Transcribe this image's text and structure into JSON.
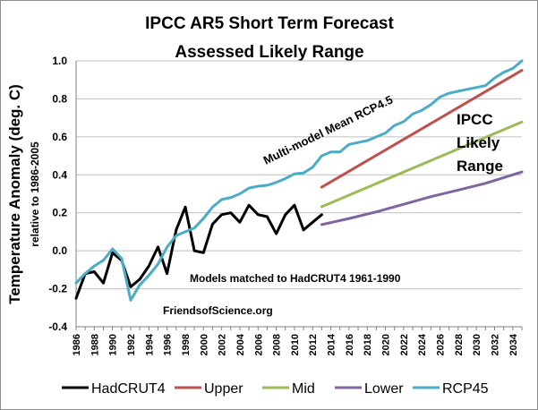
{
  "chart_data": {
    "type": "line",
    "title_line1": "IPCC AR5 Short Term Forecast",
    "title_line2": "Assessed Likely Range",
    "ylabel": "Temperature Anomaly (deg. C)",
    "ylabel_sub": "relative to 1986-2005",
    "ylim": [
      -0.4,
      1.0
    ],
    "y_ticks": [
      "-0.4",
      "-0.2",
      "0.0",
      "0.2",
      "0.4",
      "0.6",
      "0.8",
      "1.0"
    ],
    "x_start": 1986,
    "x_end": 2035,
    "x_tick_labels": [
      "1986",
      "1988",
      "1990",
      "1992",
      "1994",
      "1996",
      "1998",
      "2000",
      "2002",
      "2004",
      "2006",
      "2008",
      "2010",
      "2012",
      "2014",
      "2016",
      "2018",
      "2020",
      "2022",
      "2024",
      "2026",
      "2028",
      "2030",
      "2032",
      "2034"
    ],
    "series": [
      {
        "name": "HadCRUT4",
        "color": "#000000",
        "x": [
          1986,
          1987,
          1988,
          1989,
          1990,
          1991,
          1992,
          1993,
          1994,
          1995,
          1996,
          1997,
          1998,
          1999,
          2000,
          2001,
          2002,
          2003,
          2004,
          2005,
          2006,
          2007,
          2008,
          2009,
          2010,
          2011,
          2012,
          2013
        ],
        "values": [
          -0.25,
          -0.12,
          -0.11,
          -0.17,
          -0.01,
          -0.05,
          -0.19,
          -0.15,
          -0.08,
          0.02,
          -0.12,
          0.11,
          0.23,
          0.0,
          -0.01,
          0.14,
          0.19,
          0.2,
          0.15,
          0.24,
          0.19,
          0.18,
          0.09,
          0.19,
          0.24,
          0.11,
          0.15,
          0.19
        ]
      },
      {
        "name": "Upper",
        "color": "#c0504d",
        "x": [
          2013,
          2035
        ],
        "values": [
          0.335,
          0.95
        ]
      },
      {
        "name": "Mid",
        "color": "#9bbb59",
        "x": [
          2013,
          2035
        ],
        "values": [
          0.232,
          0.678
        ]
      },
      {
        "name": "Lower",
        "color": "#8064a2",
        "x": [
          2013,
          2016,
          2019,
          2022,
          2025,
          2028,
          2031,
          2035
        ],
        "values": [
          0.138,
          0.17,
          0.205,
          0.245,
          0.285,
          0.32,
          0.355,
          0.415
        ]
      },
      {
        "name": "RCP45",
        "color": "#4bacc6",
        "x": [
          1986,
          1987,
          1988,
          1989,
          1990,
          1991,
          1992,
          1993,
          1994,
          1995,
          1996,
          1997,
          1998,
          1999,
          2000,
          2001,
          2002,
          2003,
          2004,
          2005,
          2006,
          2007,
          2008,
          2009,
          2010,
          2011,
          2012,
          2013,
          2014,
          2015,
          2016,
          2017,
          2018,
          2019,
          2020,
          2021,
          2022,
          2023,
          2024,
          2025,
          2026,
          2027,
          2028,
          2029,
          2030,
          2031,
          2032,
          2033,
          2034,
          2035
        ],
        "values": [
          -0.17,
          -0.12,
          -0.08,
          -0.05,
          0.01,
          -0.04,
          -0.26,
          -0.18,
          -0.13,
          -0.07,
          0.02,
          0.08,
          0.1,
          0.12,
          0.17,
          0.23,
          0.27,
          0.28,
          0.3,
          0.33,
          0.34,
          0.345,
          0.36,
          0.38,
          0.405,
          0.41,
          0.44,
          0.5,
          0.52,
          0.52,
          0.56,
          0.57,
          0.58,
          0.6,
          0.62,
          0.66,
          0.68,
          0.72,
          0.74,
          0.77,
          0.81,
          0.83,
          0.84,
          0.85,
          0.86,
          0.87,
          0.91,
          0.94,
          0.96,
          1.0
        ]
      }
    ],
    "annotations": {
      "multi_model": "Multi-model Mean RCP4.5",
      "ipcc_line1": "IPCC",
      "ipcc_line2": "Likely",
      "ipcc_line3": "Range",
      "models_matched": "Models matched to HadCRUT4 1961-1990",
      "source": "FriendsofScience.org"
    },
    "legend": {
      "position": "bottom",
      "entries": [
        "HadCRUT4",
        "Upper",
        "Mid",
        "Lower",
        "RCP45"
      ]
    }
  }
}
